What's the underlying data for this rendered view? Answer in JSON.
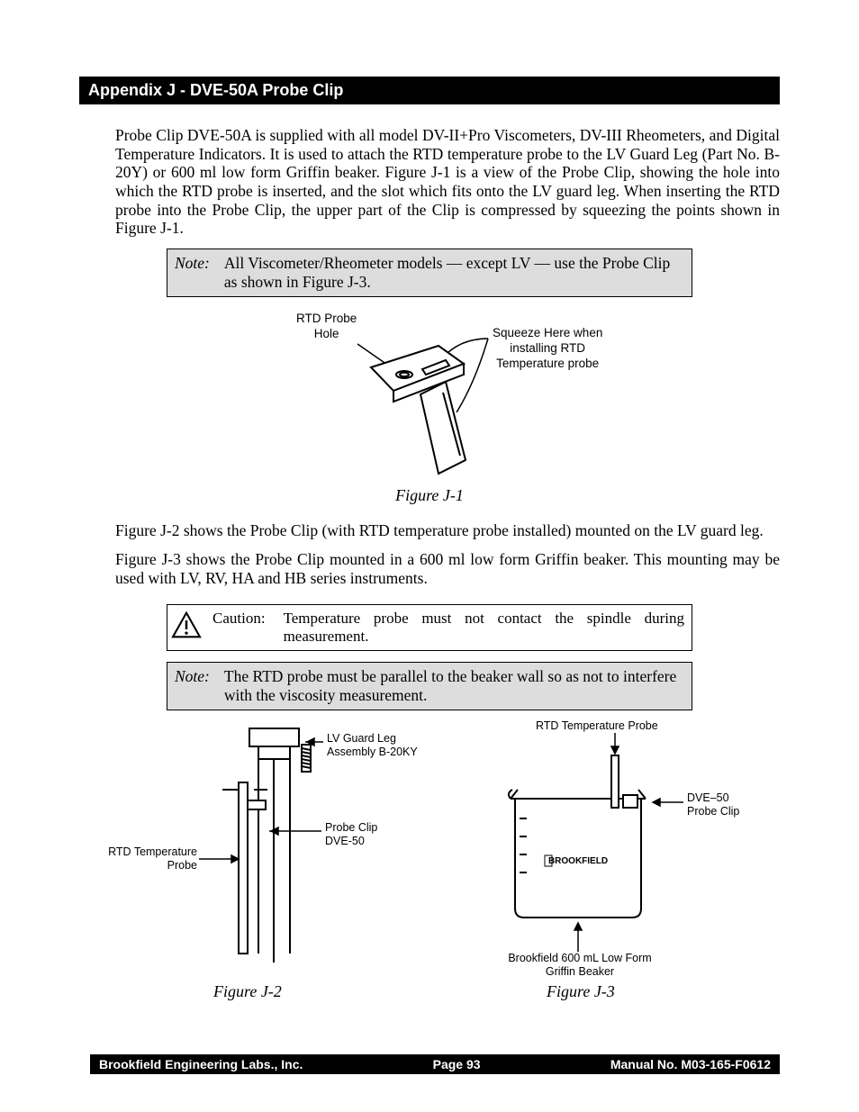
{
  "header": {
    "title": "Appendix J - DVE-50A Probe Clip"
  },
  "para1": "Probe Clip DVE-50A is supplied with all model DV-II+Pro Viscometers, DV-III Rheometers, and Digital Temperature Indicators. It is used  to attach the RTD temperature probe to  the LV Guard Leg (Part No. B-20Y) or 600 ml low form Griffin beaker.  Figure J-1 is a view of  the Probe Clip, showing the hole into which the RTD probe is inserted, and the slot which fits onto the LV guard leg.  When inserting the RTD probe into the Probe Clip, the upper part of the Clip is compressed by squeezing the points shown in Figure J-1.",
  "note1": {
    "label": "Note:",
    "text": "All Viscometer/Rheometer models — except LV — use the Probe Clip as shown in Figure J-3."
  },
  "fig1": {
    "callout_left": "RTD Probe\nHole",
    "callout_right": "Squeeze Here when\ninstalling RTD\nTemperature probe",
    "caption": "Figure J-1"
  },
  "para2": "Figure J-2 shows the Probe Clip (with RTD temperature probe installed) mounted on the LV guard leg.",
  "para3": "Figure J-3 shows the Probe Clip mounted in a 600 ml low form Griffin beaker.  This mounting may be used with LV, RV, HA and HB series instruments.",
  "caution": {
    "label": "Caution:",
    "text": "Temperature probe must not contact the spindle during measurement."
  },
  "note2": {
    "label": "Note:",
    "text": "The RTD probe must be parallel to the beaker wall so as not to interfere with the viscosity measurement."
  },
  "fig2": {
    "callout_guard": "LV  Guard Leg\nAssembly B-20KY",
    "callout_clip": "Probe Clip\nDVE-50",
    "callout_rtd": "RTD Temperature\nProbe",
    "caption": "Figure J-2"
  },
  "fig3": {
    "callout_rtd": "RTD Temperature Probe",
    "callout_clip": "DVE–50\nProbe Clip",
    "callout_beaker": "Brookfield 600 mL Low Form\nGriffin Beaker",
    "brand_logo": "BROOKFIELD",
    "caption": "Figure J-3"
  },
  "footer": {
    "left": "Brookfield Engineering Labs., Inc.",
    "center": "Page  93",
    "right": "Manual No. M03-165-F0612"
  },
  "colors": {
    "page_bg": "#ffffff",
    "text": "#000000",
    "note_bg": "#dddddd",
    "header_bg": "#000000",
    "header_fg": "#ffffff"
  }
}
